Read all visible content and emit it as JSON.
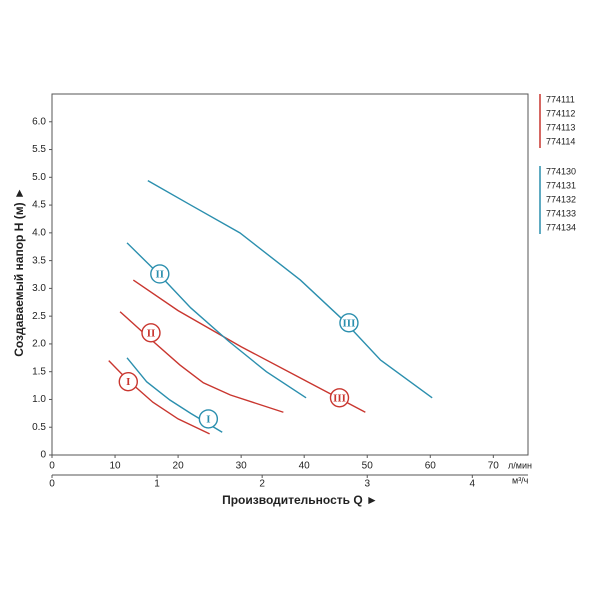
{
  "chart_data": {
    "type": "line",
    "y_label": "Создаваемый напор H (м) ►",
    "x_label": "Производительность Q ►",
    "x_unit": "л/мин",
    "x2_unit": "м³/ч",
    "xlim": [
      0,
      75.5
    ],
    "xticks": [
      0,
      10,
      20,
      30,
      40,
      50,
      60,
      70
    ],
    "x2lim": [
      0,
      4.53
    ],
    "x2ticks": [
      0,
      1,
      2,
      3,
      4
    ],
    "ylim": [
      0,
      6.5
    ],
    "yticks": [
      0,
      {
        "value": 0.5,
        "label": "0.5"
      },
      {
        "value": 1,
        "label": "1.0"
      },
      1.5,
      {
        "value": 2,
        "label": "2.0"
      },
      2.5,
      {
        "value": 3,
        "label": "3.0"
      },
      3.5,
      {
        "value": 4,
        "label": "4.0"
      },
      4.5,
      {
        "value": 5,
        "label": "5.0"
      },
      5.5,
      {
        "value": 6,
        "label": "6.0"
      }
    ],
    "series": [
      {
        "name": "I",
        "color": "#c9362f",
        "x": [
          9,
          12,
          16,
          20,
          25
        ],
        "values": [
          1.7,
          1.35,
          0.95,
          0.65,
          0.38
        ],
        "label_at": [
          12.1,
          1.32
        ]
      },
      {
        "name": "II",
        "color": "#c9362f",
        "x": [
          10.8,
          15,
          20.3,
          24,
          28.3,
          36.7
        ],
        "values": [
          2.58,
          2.15,
          1.62,
          1.3,
          1.08,
          0.77
        ],
        "label_at": [
          15.7,
          2.2
        ]
      },
      {
        "name": "III",
        "color": "#c9362f",
        "x": [
          12.9,
          20,
          30,
          40,
          49.7
        ],
        "values": [
          3.15,
          2.6,
          1.95,
          1.35,
          0.77
        ],
        "label_at": [
          45.6,
          1.03
        ]
      },
      {
        "name": "I",
        "color": "#2b8fae",
        "x": [
          11.9,
          15,
          18.7,
          22,
          27
        ],
        "values": [
          1.75,
          1.32,
          0.99,
          0.75,
          0.41
        ],
        "label_at": [
          24.8,
          0.65
        ]
      },
      {
        "name": "II",
        "color": "#2b8fae",
        "x": [
          11.9,
          17,
          22,
          28,
          34,
          40.3
        ],
        "values": [
          3.82,
          3.25,
          2.65,
          2.05,
          1.5,
          1.03
        ],
        "label_at": [
          17.1,
          3.26
        ]
      },
      {
        "name": "III",
        "color": "#2b8fae",
        "x": [
          15.2,
          22,
          29.8,
          39.4,
          46,
          52.1,
          60.3
        ],
        "values": [
          4.94,
          4.5,
          4.0,
          3.15,
          2.45,
          1.71,
          1.03
        ],
        "label_at": [
          47.1,
          2.38
        ]
      }
    ],
    "legend": [
      {
        "color": "#c9362f",
        "codes": [
          "774111",
          "774112",
          "774113",
          "774114"
        ]
      },
      {
        "color": "#2b8fae",
        "codes": [
          "774130",
          "774131",
          "774132",
          "774133",
          "774134"
        ]
      }
    ]
  }
}
